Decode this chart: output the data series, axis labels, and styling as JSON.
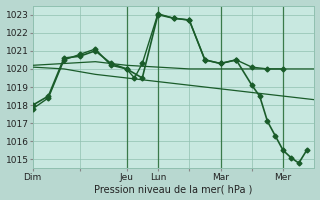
{
  "xlabel": "Pression niveau de la mer( hPa )",
  "bg_color": "#b8d8d0",
  "plot_bg_color": "#c8e8e0",
  "grid_color": "#90c0b0",
  "line_color": "#1a5c2a",
  "ylim": [
    1014.5,
    1023.5
  ],
  "yticks": [
    1015,
    1016,
    1017,
    1018,
    1019,
    1020,
    1021,
    1022,
    1023
  ],
  "xlim": [
    0,
    36
  ],
  "xtick_labels": [
    "Dim",
    "",
    "Jeu",
    "Lun",
    "",
    "Mar",
    "",
    "Mer"
  ],
  "xtick_positions": [
    0,
    6,
    12,
    16,
    20,
    24,
    28,
    32
  ],
  "series": [
    {
      "x": [
        0,
        2,
        4,
        6,
        8,
        10,
        12,
        13,
        14,
        16,
        18,
        20,
        22,
        24,
        26,
        28,
        30,
        32
      ],
      "y": [
        1017.8,
        1018.4,
        1020.5,
        1020.8,
        1021.1,
        1020.2,
        1020.0,
        1019.5,
        1020.3,
        1023.05,
        1022.8,
        1022.7,
        1020.5,
        1020.3,
        1020.5,
        1020.1,
        1020.0,
        1020.0
      ],
      "marker": "D",
      "markersize": 2.5,
      "linewidth": 1.0
    },
    {
      "x": [
        0,
        4,
        8,
        12,
        16,
        20,
        24,
        28,
        32,
        36
      ],
      "y": [
        1020.2,
        1020.3,
        1020.4,
        1020.2,
        1020.1,
        1020.0,
        1020.0,
        1020.0,
        1020.0,
        1020.0
      ],
      "marker": null,
      "markersize": 0,
      "linewidth": 0.9
    },
    {
      "x": [
        0,
        4,
        8,
        12,
        16,
        20,
        24,
        28,
        32,
        36
      ],
      "y": [
        1020.1,
        1020.0,
        1019.7,
        1019.5,
        1019.3,
        1019.1,
        1018.9,
        1018.7,
        1018.5,
        1018.3
      ],
      "marker": null,
      "markersize": 0,
      "linewidth": 0.9
    },
    {
      "x": [
        0,
        2,
        4,
        6,
        8,
        10,
        12,
        14,
        16,
        18,
        20,
        22,
        24,
        26,
        28,
        29,
        30,
        31,
        32,
        33,
        34,
        35
      ],
      "y": [
        1018.0,
        1018.5,
        1020.6,
        1020.7,
        1021.0,
        1020.3,
        1020.0,
        1019.5,
        1023.0,
        1022.8,
        1022.7,
        1020.5,
        1020.3,
        1020.5,
        1019.1,
        1018.5,
        1017.1,
        1016.3,
        1015.5,
        1015.1,
        1014.8,
        1015.5
      ],
      "marker": "D",
      "markersize": 2.5,
      "linewidth": 1.2
    }
  ],
  "vlines": [
    12,
    16,
    24,
    32
  ],
  "vline_color": "#3a7a4a",
  "xlabel_fontsize": 7,
  "tick_fontsize": 6.5
}
